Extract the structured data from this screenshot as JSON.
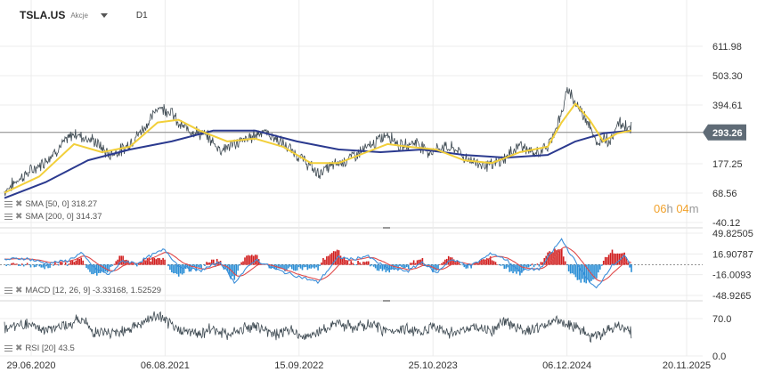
{
  "header": {
    "symbol": "TSLA.US",
    "asset_type": "Akcje",
    "timeframe": "D1"
  },
  "price_box": {
    "value": "293.26",
    "color": "#5f6b76"
  },
  "timer": {
    "h": "06",
    "h_unit": "h",
    "m": "04",
    "m_unit": "m"
  },
  "indicators": {
    "sma50": {
      "label": "SMA [50, 0] 318.27",
      "color": "#f2cf3a"
    },
    "sma200": {
      "label": "SMA [200, 0] 314.37",
      "color": "#2b3a8f"
    },
    "macd": {
      "label": "MACD [12, 26, 9] -3.33168, 1.52529"
    },
    "rsi": {
      "label": "RSI [20] 43.5"
    }
  },
  "chart_data": {
    "type": "line",
    "x_ticks": [
      "29.06.2020",
      "06.08.2021",
      "15.09.2022",
      "25.10.2023",
      "06.12.2024",
      "20.11.2025"
    ],
    "x_range": [
      "2020-06-29",
      "2025-11-20"
    ],
    "price_panel": {
      "y_ticks": [
        "611.98",
        "503.30",
        "394.61",
        "293.26",
        "177.25",
        "68.56",
        "-40.12"
      ],
      "current_price": 293.26,
      "price_series": [
        [
          0,
          75
        ],
        [
          0.02,
          120
        ],
        [
          0.05,
          170
        ],
        [
          0.08,
          240
        ],
        [
          0.1,
          290
        ],
        [
          0.13,
          260
        ],
        [
          0.15,
          210
        ],
        [
          0.17,
          230
        ],
        [
          0.19,
          280
        ],
        [
          0.21,
          340
        ],
        [
          0.22,
          390
        ],
        [
          0.24,
          370
        ],
        [
          0.25,
          320
        ],
        [
          0.27,
          300
        ],
        [
          0.29,
          280
        ],
        [
          0.31,
          230
        ],
        [
          0.33,
          250
        ],
        [
          0.35,
          270
        ],
        [
          0.37,
          300
        ],
        [
          0.39,
          270
        ],
        [
          0.41,
          230
        ],
        [
          0.43,
          190
        ],
        [
          0.45,
          140
        ],
        [
          0.47,
          170
        ],
        [
          0.49,
          190
        ],
        [
          0.51,
          220
        ],
        [
          0.53,
          250
        ],
        [
          0.55,
          290
        ],
        [
          0.57,
          240
        ],
        [
          0.59,
          260
        ],
        [
          0.61,
          220
        ],
        [
          0.63,
          240
        ],
        [
          0.65,
          230
        ],
        [
          0.66,
          200
        ],
        [
          0.68,
          180
        ],
        [
          0.7,
          170
        ],
        [
          0.72,
          200
        ],
        [
          0.74,
          250
        ],
        [
          0.76,
          210
        ],
        [
          0.78,
          240
        ],
        [
          0.8,
          360
        ],
        [
          0.81,
          460
        ],
        [
          0.82,
          400
        ],
        [
          0.84,
          330
        ],
        [
          0.85,
          240
        ],
        [
          0.86,
          280
        ],
        [
          0.87,
          260
        ],
        [
          0.88,
          330
        ],
        [
          0.9,
          310
        ]
      ],
      "sma50_series": [
        [
          0,
          70
        ],
        [
          0.05,
          130
        ],
        [
          0.1,
          250
        ],
        [
          0.14,
          220
        ],
        [
          0.18,
          240
        ],
        [
          0.22,
          330
        ],
        [
          0.25,
          340
        ],
        [
          0.28,
          300
        ],
        [
          0.32,
          260
        ],
        [
          0.36,
          270
        ],
        [
          0.4,
          240
        ],
        [
          0.44,
          180
        ],
        [
          0.48,
          180
        ],
        [
          0.52,
          220
        ],
        [
          0.55,
          250
        ],
        [
          0.58,
          240
        ],
        [
          0.62,
          230
        ],
        [
          0.66,
          190
        ],
        [
          0.7,
          180
        ],
        [
          0.74,
          220
        ],
        [
          0.78,
          240
        ],
        [
          0.8,
          330
        ],
        [
          0.82,
          400
        ],
        [
          0.84,
          340
        ],
        [
          0.86,
          260
        ],
        [
          0.88,
          290
        ],
        [
          0.9,
          300
        ]
      ],
      "sma200_series": [
        [
          0,
          50
        ],
        [
          0.06,
          110
        ],
        [
          0.12,
          190
        ],
        [
          0.18,
          230
        ],
        [
          0.24,
          260
        ],
        [
          0.3,
          300
        ],
        [
          0.36,
          300
        ],
        [
          0.42,
          260
        ],
        [
          0.48,
          230
        ],
        [
          0.54,
          220
        ],
        [
          0.6,
          230
        ],
        [
          0.66,
          210
        ],
        [
          0.72,
          200
        ],
        [
          0.78,
          210
        ],
        [
          0.82,
          260
        ],
        [
          0.86,
          290
        ],
        [
          0.9,
          300
        ]
      ]
    },
    "macd_panel": {
      "y_ticks": [
        "49.82505",
        "16.90787",
        "-16.0093",
        "-48.9265"
      ],
      "macd_series": [
        [
          0,
          8
        ],
        [
          0.03,
          10
        ],
        [
          0.06,
          2
        ],
        [
          0.09,
          6
        ],
        [
          0.11,
          18
        ],
        [
          0.13,
          -6
        ],
        [
          0.15,
          -16
        ],
        [
          0.17,
          6
        ],
        [
          0.19,
          2
        ],
        [
          0.21,
          14
        ],
        [
          0.23,
          24
        ],
        [
          0.25,
          -2
        ],
        [
          0.28,
          -10
        ],
        [
          0.31,
          4
        ],
        [
          0.33,
          -28
        ],
        [
          0.36,
          8
        ],
        [
          0.39,
          -8
        ],
        [
          0.42,
          -18
        ],
        [
          0.45,
          -28
        ],
        [
          0.48,
          12
        ],
        [
          0.5,
          8
        ],
        [
          0.52,
          14
        ],
        [
          0.55,
          -6
        ],
        [
          0.58,
          -10
        ],
        [
          0.6,
          4
        ],
        [
          0.62,
          -14
        ],
        [
          0.64,
          8
        ],
        [
          0.67,
          -2
        ],
        [
          0.7,
          18
        ],
        [
          0.72,
          8
        ],
        [
          0.74,
          -10
        ],
        [
          0.77,
          -6
        ],
        [
          0.79,
          26
        ],
        [
          0.8,
          40
        ],
        [
          0.82,
          4
        ],
        [
          0.84,
          -28
        ],
        [
          0.85,
          -38
        ],
        [
          0.87,
          -4
        ],
        [
          0.89,
          14
        ],
        [
          0.9,
          -4
        ]
      ]
    },
    "rsi_panel": {
      "y_ticks": [
        "70.0",
        "0.0"
      ],
      "rsi_series": [
        [
          0,
          52
        ],
        [
          0.03,
          60
        ],
        [
          0.06,
          48
        ],
        [
          0.09,
          58
        ],
        [
          0.11,
          70
        ],
        [
          0.13,
          44
        ],
        [
          0.15,
          42
        ],
        [
          0.18,
          52
        ],
        [
          0.2,
          62
        ],
        [
          0.22,
          76
        ],
        [
          0.24,
          56
        ],
        [
          0.26,
          46
        ],
        [
          0.28,
          42
        ],
        [
          0.3,
          52
        ],
        [
          0.32,
          40
        ],
        [
          0.35,
          56
        ],
        [
          0.37,
          50
        ],
        [
          0.39,
          42
        ],
        [
          0.41,
          48
        ],
        [
          0.43,
          36
        ],
        [
          0.45,
          44
        ],
        [
          0.48,
          62
        ],
        [
          0.5,
          52
        ],
        [
          0.53,
          58
        ],
        [
          0.55,
          46
        ],
        [
          0.57,
          52
        ],
        [
          0.6,
          44
        ],
        [
          0.62,
          56
        ],
        [
          0.64,
          42
        ],
        [
          0.67,
          52
        ],
        [
          0.7,
          48
        ],
        [
          0.72,
          66
        ],
        [
          0.74,
          50
        ],
        [
          0.77,
          54
        ],
        [
          0.79,
          66
        ],
        [
          0.8,
          62
        ],
        [
          0.82,
          56
        ],
        [
          0.84,
          36
        ],
        [
          0.86,
          42
        ],
        [
          0.88,
          60
        ],
        [
          0.9,
          44
        ]
      ]
    }
  }
}
